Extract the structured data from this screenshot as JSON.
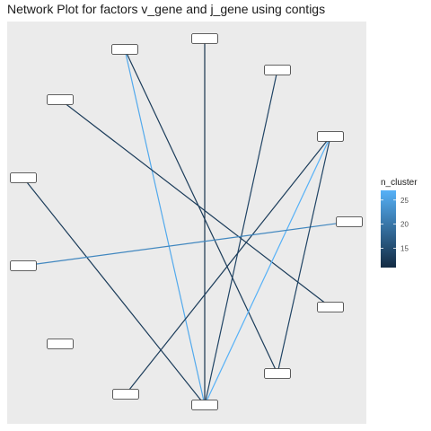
{
  "chart_data": {
    "type": "network",
    "title": "Network Plot for factors v_gene and j_gene using contigs",
    "nodes": [
      {
        "id": "n1",
        "label": ""
      },
      {
        "id": "n2",
        "label": ""
      },
      {
        "id": "n3",
        "label": ""
      },
      {
        "id": "n4",
        "label": ""
      },
      {
        "id": "n5",
        "label": ""
      },
      {
        "id": "n6",
        "label": ""
      },
      {
        "id": "n7",
        "label": ""
      },
      {
        "id": "n8",
        "label": ""
      },
      {
        "id": "n9",
        "label": ""
      },
      {
        "id": "n10",
        "label": ""
      },
      {
        "id": "n11",
        "label": ""
      },
      {
        "id": "n12",
        "label": ""
      },
      {
        "id": "n13",
        "label": ""
      },
      {
        "id": "n14",
        "label": ""
      }
    ],
    "edges": [
      {
        "from": "n2",
        "to": "n14",
        "n_cluster": 26
      },
      {
        "from": "n2",
        "to": "n12",
        "n_cluster": 13
      },
      {
        "from": "n3",
        "to": "n14",
        "n_cluster": 12
      },
      {
        "from": "n4",
        "to": "n14",
        "n_cluster": 14
      },
      {
        "from": "n1",
        "to": "n11",
        "n_cluster": 13
      },
      {
        "from": "n5",
        "to": "n10",
        "n_cluster": 13
      },
      {
        "from": "n5",
        "to": "n14",
        "n_cluster": 27
      },
      {
        "from": "n6",
        "to": "n14",
        "n_cluster": 13
      },
      {
        "from": "n7",
        "to": "n9",
        "n_cluster": 22
      },
      {
        "from": "n5",
        "to": "n12",
        "n_cluster": 14
      }
    ],
    "legend": {
      "title": "n_cluster",
      "ticks": [
        15,
        20,
        25
      ],
      "range": [
        11,
        27
      ],
      "colors": [
        "#132B43",
        "#56B1F7"
      ],
      "position": "right"
    },
    "grid": false,
    "panel_background": "#EBEBEB"
  }
}
